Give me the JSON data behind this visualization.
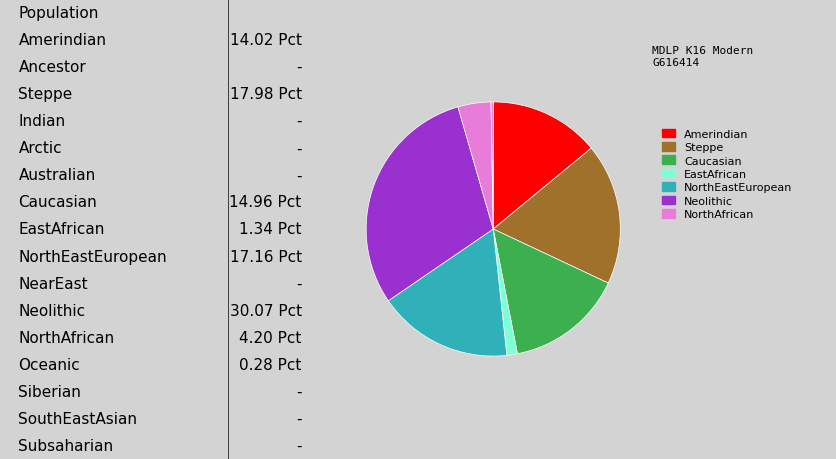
{
  "table_rows": [
    [
      "Population",
      ""
    ],
    [
      "Amerindian",
      "14.02 Pct"
    ],
    [
      "Ancestor",
      "-"
    ],
    [
      "Steppe",
      "17.98 Pct"
    ],
    [
      "Indian",
      "-"
    ],
    [
      "Arctic",
      "-"
    ],
    [
      "Australian",
      "-"
    ],
    [
      "Caucasian",
      "14.96 Pct"
    ],
    [
      "EastAfrican",
      "1.34 Pct"
    ],
    [
      "NorthEastEuropean",
      "17.16 Pct"
    ],
    [
      "NearEast",
      "-"
    ],
    [
      "Neolithic",
      "30.07 Pct"
    ],
    [
      "NorthAfrican",
      "4.20 Pct"
    ],
    [
      "Oceanic",
      "0.28 Pct"
    ],
    [
      "Siberian",
      "-"
    ],
    [
      "SouthEastAsian",
      "-"
    ],
    [
      "Subsaharian",
      "-"
    ]
  ],
  "pie_values": [
    14.02,
    17.98,
    14.96,
    1.34,
    17.16,
    30.07,
    4.2,
    0.28
  ],
  "pie_colors": [
    "#ff0000",
    "#a0712a",
    "#3cb04e",
    "#7fffd4",
    "#30b0b8",
    "#9b30d0",
    "#e87cd8",
    "#e87cd8"
  ],
  "legend_colors": [
    "#ff0000",
    "#a0712a",
    "#3cb04e",
    "#7fffd4",
    "#30b0b8",
    "#9b30d0",
    "#e87cd8"
  ],
  "legend_labels": [
    "Amerindian",
    "Steppe",
    "Caucasian",
    "EastAfrican",
    "NorthEastEuropean",
    "Neolithic",
    "NorthAfrican"
  ],
  "chart_title": "MDLP K16 Modern\nG616414",
  "bg_color": "#d3d3d3",
  "table_font_size": 11,
  "legend_font_size": 8,
  "title_font_size": 8
}
